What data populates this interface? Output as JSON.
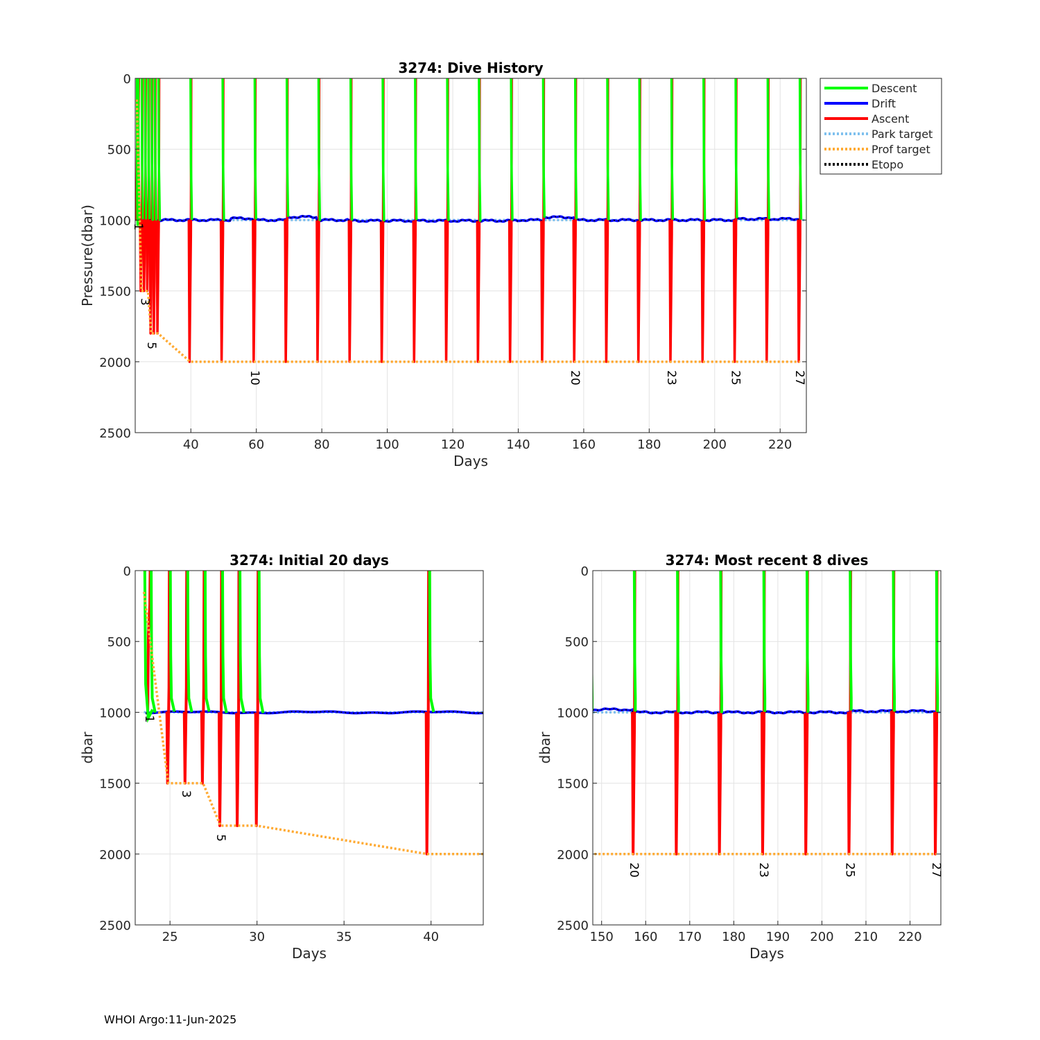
{
  "footer": "WHOI Argo:11-Jun-2025",
  "legend": [
    {
      "label": "Descent",
      "color": "#00ff00",
      "dash": false
    },
    {
      "label": "Drift",
      "color": "#0000ff",
      "dash": false
    },
    {
      "label": "Ascent",
      "color": "#ff0000",
      "dash": false
    },
    {
      "label": "Park target",
      "color": "#7ec0ee",
      "dash": true
    },
    {
      "label": "Prof target",
      "color": "#ffaa33",
      "dash": true
    },
    {
      "label": "Etopo",
      "color": "#000000",
      "dash": true
    }
  ],
  "dive_days": [
    23.8,
    24.9,
    25.9,
    26.9,
    27.9,
    28.9,
    30.0,
    39.8,
    49.6,
    59.4,
    69.2,
    78.9,
    88.7,
    98.5,
    108.4,
    118.2,
    127.9,
    137.7,
    147.5,
    157.3,
    167.1,
    176.9,
    186.7,
    196.5,
    206.3,
    216.1,
    225.9
  ],
  "chart_data": [
    {
      "type": "line",
      "title": "3274: Dive History",
      "xlabel": "Days",
      "ylabel": "Pressure(dbar)",
      "xlim": [
        23,
        228
      ],
      "ylim": [
        0,
        2500
      ],
      "y_reversed": true,
      "xticks": [
        40,
        60,
        80,
        100,
        120,
        140,
        160,
        180,
        200,
        220
      ],
      "yticks": [
        0,
        500,
        1000,
        1500,
        2000,
        2500
      ],
      "grid": true,
      "legend_position": "outside-top-right",
      "series": [
        {
          "name": "Descent",
          "description": "surface to park pressure at each dive"
        },
        {
          "name": "Drift",
          "values_approx_dbar": 1000
        },
        {
          "name": "Ascent",
          "description": "profile pressure to surface at each dive"
        },
        {
          "name": "Park target",
          "values_dbar": 1000
        },
        {
          "name": "Prof target",
          "x": [
            23.5,
            24.9,
            26.9,
            27.9,
            30.0,
            39.8,
            226
          ],
          "y": [
            150,
            1500,
            1500,
            1800,
            1800,
            2000,
            2000
          ]
        }
      ],
      "annotations": [
        {
          "text": "1",
          "x": 23.8,
          "y": 1020
        },
        {
          "text": "3",
          "x": 25.9,
          "y": 1550
        },
        {
          "text": "5",
          "x": 27.9,
          "y": 1860
        },
        {
          "text": "10",
          "x": 59.4,
          "y": 2060
        },
        {
          "text": "20",
          "x": 157.3,
          "y": 2060
        },
        {
          "text": "23",
          "x": 186.7,
          "y": 2060
        },
        {
          "text": "25",
          "x": 206.3,
          "y": 2060
        },
        {
          "text": "27",
          "x": 225.9,
          "y": 2060
        }
      ]
    },
    {
      "type": "line",
      "title": "3274: Initial 20 days",
      "xlabel": "Days",
      "ylabel": "dbar",
      "xlim": [
        23,
        43
      ],
      "ylim": [
        0,
        2500
      ],
      "y_reversed": true,
      "xticks": [
        25,
        30,
        35,
        40
      ],
      "yticks": [
        0,
        500,
        1000,
        1500,
        2000,
        2500
      ],
      "grid": true,
      "annotations": [
        {
          "text": "1",
          "x": 23.8,
          "y": 1020
        },
        {
          "text": "3",
          "x": 25.9,
          "y": 1550
        },
        {
          "text": "5",
          "x": 27.9,
          "y": 1860
        }
      ]
    },
    {
      "type": "line",
      "title": "3274: Most recent 8 dives",
      "xlabel": "Days",
      "ylabel": "dbar",
      "xlim": [
        148,
        227
      ],
      "ylim": [
        0,
        2500
      ],
      "y_reversed": true,
      "xticks": [
        150,
        160,
        170,
        180,
        190,
        200,
        210,
        220
      ],
      "yticks": [
        0,
        500,
        1000,
        1500,
        2000,
        2500
      ],
      "grid": true,
      "annotations": [
        {
          "text": "20",
          "x": 157.3,
          "y": 2060
        },
        {
          "text": "23",
          "x": 186.7,
          "y": 2060
        },
        {
          "text": "25",
          "x": 206.3,
          "y": 2060
        },
        {
          "text": "27",
          "x": 225.9,
          "y": 2060
        }
      ]
    }
  ]
}
